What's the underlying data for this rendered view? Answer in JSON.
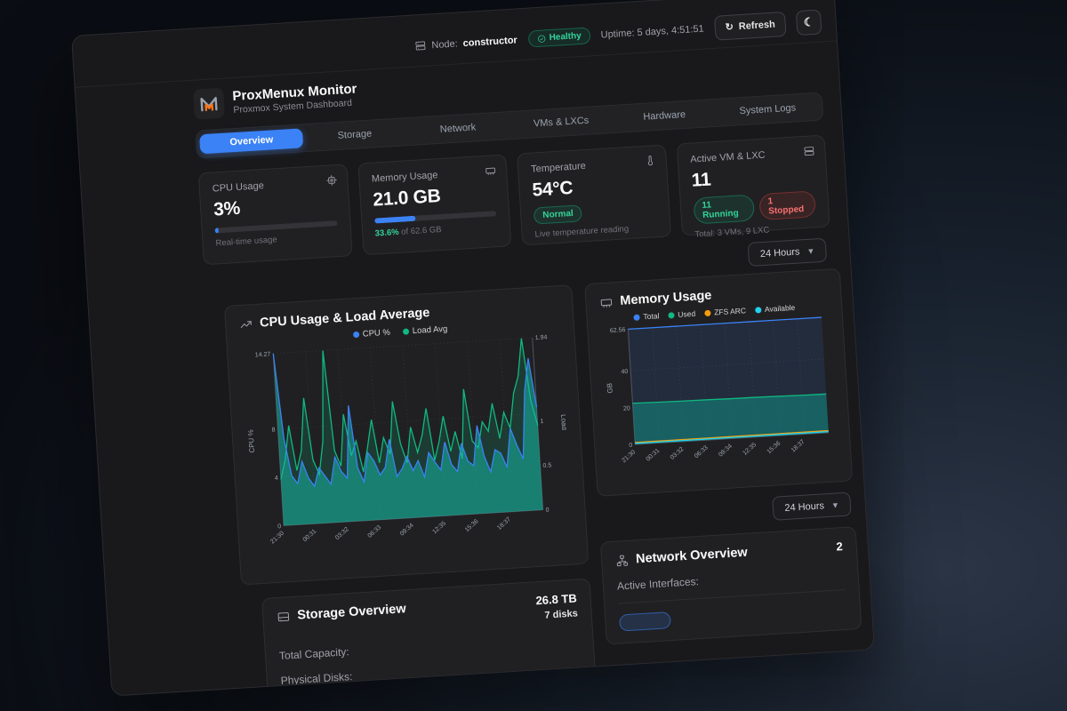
{
  "topbar": {
    "node_label": "Node:",
    "node_value": "constructor",
    "health_badge": "Healthy",
    "uptime": "Uptime: 5 days, 4:51:51",
    "refresh_label": "Refresh"
  },
  "header": {
    "title": "ProxMenux Monitor",
    "subtitle": "Proxmox System Dashboard"
  },
  "tabs": [
    {
      "label": "Overview",
      "active": true
    },
    {
      "label": "Storage"
    },
    {
      "label": "Network"
    },
    {
      "label": "VMs & LXCs"
    },
    {
      "label": "Hardware"
    },
    {
      "label": "System Logs"
    }
  ],
  "stats": {
    "cpu": {
      "title": "CPU Usage",
      "value": "3%",
      "percent": 3,
      "sub": "Real-time usage"
    },
    "memory": {
      "title": "Memory Usage",
      "value": "21.0 GB",
      "percent": 33.6,
      "percent_label": "33.6%",
      "of_label": " of 62.6 GB"
    },
    "temperature": {
      "title": "Temperature",
      "value": "54°C",
      "badge": "Normal",
      "sub": "Live temperature reading"
    },
    "vms": {
      "title": "Active VM & LXC",
      "value": "11",
      "running_badge": "11 Running",
      "stopped_badge": "1 Stopped",
      "sub": "Total: 3 VMs, 9 LXC"
    }
  },
  "range_selector": {
    "label": "24 Hours"
  },
  "range_selector2": {
    "label": "24 Hours"
  },
  "storage": {
    "title": "Storage Overview",
    "rows": [
      {
        "label": "Total Capacity:",
        "value": "26.8 TB"
      },
      {
        "label": "Physical Disks:",
        "value": "7 disks"
      }
    ]
  },
  "network": {
    "title": "Network Overview",
    "active_interfaces_label": "Active Interfaces:",
    "active_interfaces_value": "2"
  },
  "colors": {
    "accent": "#3b82f6",
    "green": "#10b981",
    "red": "#ef4444",
    "orange": "#f59e0b",
    "cyan": "#22d3ee",
    "teal": "#14b8a6"
  },
  "chart_data": [
    {
      "type": "area",
      "title": "CPU Usage & Load Average",
      "x_labels": [
        "21:30",
        "00:31",
        "03:32",
        "06:33",
        "09:34",
        "12:35",
        "15:36",
        "18:37"
      ],
      "left_axis": {
        "label": "CPU %",
        "ticks": [
          0,
          4,
          8,
          14.27
        ],
        "max": 14.27
      },
      "right_axis": {
        "label": "Load",
        "ticks": [
          0,
          0.5,
          1,
          1.94
        ],
        "max": 1.94
      },
      "grid": "dotted",
      "legend_position": "top",
      "series": [
        {
          "name": "Load Avg",
          "color": "#10b981",
          "fill": "rgba(16,185,129,0.18)",
          "axis": "right",
          "values": [
            0.52,
            0.74,
            1.12,
            0.61,
            0.83,
            1.42,
            0.72,
            0.55,
            0.92,
            1.94,
            0.81,
            0.63,
            1.21,
            0.74,
            0.9,
            0.55,
            0.82,
            1.13,
            0.64,
            0.92,
            0.73,
            1.32,
            0.84,
            0.62,
            1.02,
            0.73,
            0.92,
            1.22,
            0.63,
            0.84,
            1.12,
            0.72,
            0.94,
            0.63,
            1.41,
            0.82,
            0.74,
            1.03,
            0.92,
            1.23,
            0.83,
            1.12,
            0.94,
            1.33,
            1.52,
            1.94,
            1.24,
            0.95
          ]
        },
        {
          "name": "CPU %",
          "color": "#3b82f6",
          "fill": "rgba(20,184,166,0.55)",
          "axis": "left",
          "values": [
            14.27,
            7.2,
            4.1,
            3.4,
            5.2,
            3.8,
            3.1,
            4.6,
            3.9,
            3.2,
            5.4,
            4.2,
            3.6,
            9.6,
            4.4,
            3.2,
            5.6,
            4.9,
            3.7,
            4.3,
            6.6,
            3.5,
            4.1,
            5.1,
            3.9,
            4.7,
            3.3,
            5.3,
            4.5,
            3.8,
            6.1,
            4.2,
            3.6,
            5.9,
            4.4,
            4.0,
            7.3,
            4.7,
            3.4,
            5.2,
            4.9,
            3.7,
            6.9,
            5.5,
            4.3,
            9.9,
            12.6,
            8.5
          ]
        }
      ]
    },
    {
      "type": "area",
      "title": "Memory Usage",
      "x_labels": [
        "21:30",
        "00:31",
        "03:32",
        "06:33",
        "09:34",
        "12:35",
        "15:36",
        "18:37"
      ],
      "left_axis": {
        "label": "GB",
        "ticks": [
          0,
          20,
          40,
          62.56
        ],
        "max": 62.56
      },
      "grid": "dotted",
      "legend_position": "top",
      "series": [
        {
          "name": "Total",
          "color": "#3b82f6",
          "fill": "rgba(59,130,246,0.13)",
          "axis": "left",
          "values": [
            62.56,
            62.56,
            62.56,
            62.56,
            62.56,
            62.56,
            62.56,
            62.56,
            62.56
          ]
        },
        {
          "name": "Used",
          "color": "#10b981",
          "fill": "rgba(13,148,136,0.5)",
          "axis": "left",
          "values": [
            22.4,
            22.1,
            21.9,
            21.8,
            21.6,
            21.5,
            21.3,
            21.1,
            21.0
          ]
        },
        {
          "name": "ZFS ARC",
          "color": "#f59e0b",
          "axis": "left",
          "values": [
            1.1,
            1.1,
            1.1,
            1.1,
            1.1,
            1.1,
            1.1,
            1.1,
            1.1
          ]
        },
        {
          "name": "Available",
          "color": "#22d3ee",
          "axis": "left",
          "values": [
            0.6,
            0.6,
            0.6,
            0.6,
            0.6,
            0.6,
            0.6,
            0.6,
            0.6
          ]
        }
      ]
    }
  ]
}
